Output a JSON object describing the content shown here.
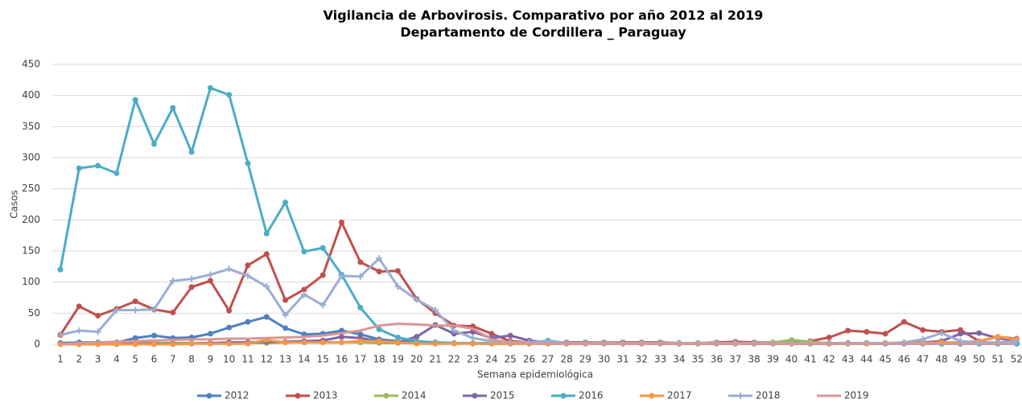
{
  "chart_data": {
    "type": "line",
    "title": "Vigilancia de Arbovirosis. Comparativo por año 2012 al 2019",
    "subtitle": "Departamento de Cordillera _ Paraguay",
    "x_label": "Semana epidemiológica",
    "y_label": "Casos",
    "categories": [
      "1",
      "2",
      "3",
      "4",
      "5",
      "6",
      "7",
      "8",
      "9",
      "10",
      "11",
      "12",
      "13",
      "14",
      "15",
      "16",
      "17",
      "18",
      "19",
      "20",
      "21",
      "22",
      "23",
      "24",
      "25",
      "26",
      "27",
      "28",
      "29",
      "30",
      "31",
      "32",
      "33",
      "34",
      "35",
      "36",
      "37",
      "38",
      "39",
      "40",
      "41",
      "42",
      "43",
      "44",
      "45",
      "46",
      "47",
      "48",
      "49",
      "50",
      "51",
      "52"
    ],
    "ylim": [
      0,
      450
    ],
    "yticks": [
      0,
      50,
      100,
      150,
      200,
      250,
      300,
      350,
      400,
      450
    ],
    "grid": true,
    "legend": "bottom",
    "series": [
      {
        "name": "2012",
        "color": "#4f81bd",
        "marker": "circle",
        "values": [
          2,
          3,
          3,
          3,
          10,
          14,
          10,
          11,
          17,
          27,
          36,
          44,
          26,
          16,
          17,
          22,
          16,
          8,
          5,
          3,
          3,
          2,
          1,
          1,
          1,
          1,
          1,
          1,
          1,
          1,
          1,
          1,
          1,
          1,
          1,
          1,
          1,
          1,
          1,
          1,
          1,
          1,
          1,
          1,
          1,
          1,
          1,
          1,
          1,
          1,
          1,
          1
        ]
      },
      {
        "name": "2013",
        "color": "#c0504d",
        "marker": "circle",
        "values": [
          15,
          61,
          46,
          57,
          69,
          56,
          51,
          92,
          102,
          54,
          127,
          145,
          71,
          88,
          111,
          196,
          132,
          117,
          118,
          73,
          50,
          30,
          29,
          17,
          5,
          3,
          3,
          3,
          3,
          3,
          3,
          3,
          3,
          2,
          2,
          3,
          4,
          3,
          3,
          3,
          5,
          11,
          22,
          20,
          17,
          36,
          23,
          20,
          23,
          5,
          12,
          9
        ]
      },
      {
        "name": "2014",
        "color": "#9bbb59",
        "marker": "circle",
        "values": [
          1,
          1,
          2,
          2,
          2,
          2,
          2,
          2,
          2,
          2,
          2,
          2,
          3,
          3,
          3,
          3,
          3,
          2,
          2,
          2,
          2,
          2,
          2,
          2,
          2,
          2,
          2,
          2,
          2,
          3,
          2,
          2,
          2,
          2,
          2,
          2,
          2,
          2,
          3,
          7,
          4,
          2,
          2,
          2,
          2,
          2,
          2,
          2,
          2,
          2,
          2,
          2
        ]
      },
      {
        "name": "2015",
        "color": "#8064a2",
        "marker": "circle",
        "values": [
          1,
          1,
          1,
          1,
          1,
          1,
          1,
          1,
          2,
          3,
          3,
          4,
          4,
          5,
          6,
          12,
          10,
          5,
          3,
          12,
          31,
          17,
          20,
          10,
          14,
          6,
          3,
          2,
          2,
          2,
          2,
          2,
          2,
          1,
          1,
          1,
          1,
          1,
          1,
          1,
          1,
          1,
          2,
          2,
          2,
          2,
          3,
          5,
          17,
          18,
          10,
          5
        ]
      },
      {
        "name": "2016",
        "color": "#4bacc6",
        "marker": "circle",
        "values": [
          120,
          283,
          287,
          275,
          393,
          322,
          380,
          309,
          412,
          401,
          291,
          178,
          228,
          149,
          155,
          112,
          59,
          24,
          11,
          5,
          3,
          2,
          2,
          2,
          1,
          2,
          6,
          2,
          2,
          1,
          1,
          1,
          1,
          1,
          1,
          1,
          1,
          1,
          1,
          1,
          1,
          1,
          1,
          1,
          1,
          1,
          1,
          1,
          1,
          1,
          1,
          1
        ]
      },
      {
        "name": "2017",
        "color": "#f79646",
        "marker": "circle",
        "values": [
          0,
          0,
          0,
          0,
          0,
          0,
          0,
          1,
          1,
          1,
          1,
          7,
          3,
          3,
          3,
          3,
          5,
          5,
          3,
          1,
          1,
          1,
          1,
          1,
          1,
          1,
          1,
          1,
          1,
          1,
          1,
          1,
          1,
          1,
          1,
          1,
          1,
          1,
          1,
          1,
          1,
          1,
          1,
          1,
          2,
          2,
          2,
          3,
          3,
          5,
          12,
          8
        ]
      },
      {
        "name": "2018",
        "color": "#9aaed3",
        "marker": "plus",
        "values": [
          15,
          22,
          20,
          55,
          55,
          56,
          102,
          105,
          112,
          121,
          110,
          93,
          47,
          80,
          63,
          110,
          109,
          138,
          93,
          72,
          55,
          22,
          10,
          5,
          3,
          3,
          5,
          2,
          2,
          2,
          2,
          2,
          2,
          2,
          2,
          2,
          2,
          2,
          2,
          2,
          2,
          2,
          2,
          2,
          2,
          3,
          8,
          18,
          5,
          3,
          3,
          5
        ]
      },
      {
        "name": "2019",
        "color": "#d99694",
        "marker": "none",
        "values": [
          0,
          2,
          3,
          4,
          5,
          6,
          7,
          8,
          8,
          9,
          9,
          10,
          11,
          12,
          14,
          18,
          22,
          30,
          33,
          32,
          30,
          30,
          25,
          8,
          3,
          2,
          1,
          1,
          1,
          1,
          1,
          1,
          1,
          1,
          1,
          1,
          1,
          1,
          1,
          1,
          1,
          1,
          1,
          1,
          1,
          1,
          1,
          1,
          1,
          1,
          1,
          1
        ]
      }
    ]
  }
}
